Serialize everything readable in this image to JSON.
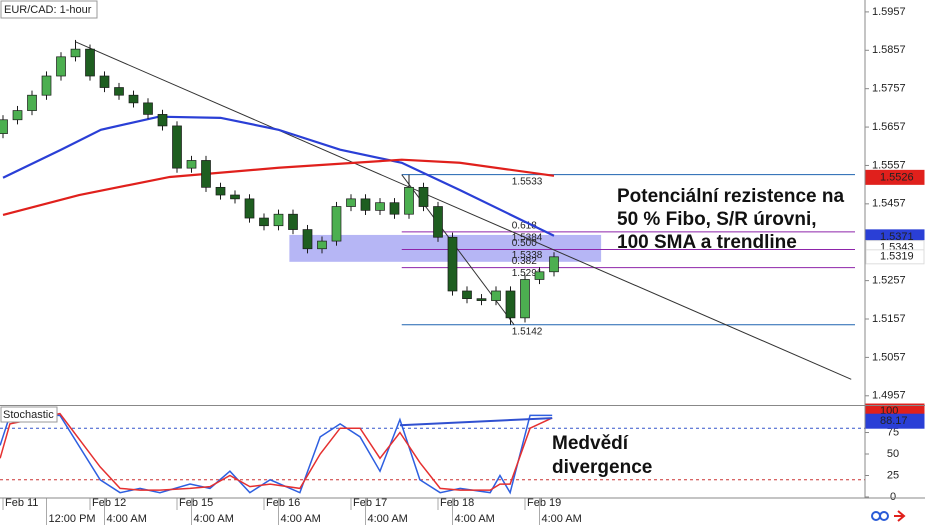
{
  "chart_data": [
    {
      "type": "candlestick",
      "title": "EUR/CAD: 1-hour",
      "xlim": [
        -0.83,
        237.8
      ],
      "ylim": [
        1.4933,
        1.5988
      ],
      "yticks": [
        1.5957,
        1.5857,
        1.5757,
        1.5657,
        1.5557,
        1.5457,
        1.5357,
        1.5257,
        1.5157,
        1.5057,
        1.4957
      ],
      "xticks": [
        {
          "value": 0,
          "label": "Feb 11"
        },
        {
          "value": 24,
          "label": "Feb 12"
        },
        {
          "value": 48,
          "label": "Feb 15"
        },
        {
          "value": 72,
          "label": "Feb 16"
        },
        {
          "value": 96,
          "label": "Feb 17"
        },
        {
          "value": 120,
          "label": "Feb 18"
        },
        {
          "value": 144,
          "label": "Feb 19"
        }
      ],
      "xticks_time": [
        {
          "value": 12,
          "label": "12:00 PM"
        },
        {
          "value": 28,
          "label": "4:00 AM"
        },
        {
          "value": 52,
          "label": "4:00 AM"
        },
        {
          "value": 76,
          "label": "4:00 AM"
        },
        {
          "value": 100,
          "label": "4:00 AM"
        },
        {
          "value": 124,
          "label": "4:00 AM"
        },
        {
          "value": 148,
          "label": "4:00 AM"
        }
      ],
      "up_color": "#4caf50",
      "down_color": "#1e5e20",
      "candles": {
        "x": [
          0,
          4,
          8,
          12,
          16,
          20,
          24,
          28,
          32,
          36,
          40,
          44,
          48,
          52,
          56,
          60,
          64,
          68,
          72,
          76,
          80,
          84,
          88,
          92,
          96,
          100,
          104,
          108,
          112,
          116,
          120,
          124,
          128,
          132,
          136,
          140,
          144,
          148,
          152
        ],
        "open": [
          1.564,
          1.5676,
          1.57,
          1.574,
          1.579,
          1.584,
          1.586,
          1.579,
          1.576,
          1.574,
          1.572,
          1.569,
          1.566,
          1.555,
          1.557,
          1.55,
          1.548,
          1.547,
          1.542,
          1.54,
          1.543,
          1.539,
          1.534,
          1.536,
          1.545,
          1.547,
          1.544,
          1.546,
          1.543,
          1.55,
          1.545,
          1.537,
          1.523,
          1.521,
          1.5205,
          1.523,
          1.516,
          1.526,
          1.528
        ],
        "high": [
          1.5688,
          1.5712,
          1.5752,
          1.5802,
          1.5852,
          1.5884,
          1.5872,
          1.5802,
          1.5772,
          1.5752,
          1.5732,
          1.5702,
          1.5672,
          1.5582,
          1.5582,
          1.5512,
          1.5492,
          1.5482,
          1.5432,
          1.5442,
          1.5442,
          1.5402,
          1.5372,
          1.5462,
          1.5482,
          1.5482,
          1.5472,
          1.5472,
          1.5533,
          1.5512,
          1.5462,
          1.5382,
          1.5242,
          1.5222,
          1.5242,
          1.5242,
          1.5272,
          1.5292,
          1.5331
        ],
        "low": [
          1.5628,
          1.5664,
          1.5688,
          1.5728,
          1.5778,
          1.5828,
          1.5778,
          1.5748,
          1.5728,
          1.5708,
          1.5678,
          1.5648,
          1.5538,
          1.5538,
          1.5488,
          1.5468,
          1.5458,
          1.5408,
          1.5388,
          1.5388,
          1.5378,
          1.5328,
          1.5328,
          1.5348,
          1.5438,
          1.5428,
          1.5428,
          1.5418,
          1.5418,
          1.5438,
          1.5358,
          1.5218,
          1.5198,
          1.5193,
          1.5193,
          1.5142,
          1.5148,
          1.5248,
          1.5268
        ],
        "close": [
          1.5676,
          1.57,
          1.574,
          1.579,
          1.584,
          1.586,
          1.579,
          1.576,
          1.574,
          1.572,
          1.569,
          1.566,
          1.555,
          1.557,
          1.55,
          1.548,
          1.547,
          1.542,
          1.54,
          1.543,
          1.539,
          1.534,
          1.536,
          1.545,
          1.547,
          1.544,
          1.546,
          1.543,
          1.55,
          1.545,
          1.537,
          1.523,
          1.521,
          1.5205,
          1.523,
          1.516,
          1.526,
          1.528,
          1.5319
        ]
      },
      "series": [
        {
          "color": "#2a3fd6",
          "x": [
            0,
            16,
            27,
            43,
            60,
            76,
            93,
            110,
            126,
            143,
            152
          ],
          "values": [
            1.5525,
            1.5598,
            1.565,
            1.5684,
            1.5681,
            1.565,
            1.5598,
            1.5564,
            1.5493,
            1.5415,
            1.5374
          ]
        },
        {
          "color": "#e0201c",
          "x": [
            0,
            21,
            46,
            76,
            110,
            126,
            152
          ],
          "values": [
            1.5428,
            1.548,
            1.5527,
            1.5551,
            1.5572,
            1.5564,
            1.553
          ]
        }
      ],
      "trendlines": [
        {
          "color": "#333333",
          "x": [
            20,
            234
          ],
          "values": [
            1.5879,
            1.5
          ]
        },
        {
          "color": "#333333",
          "x": [
            110,
            141
          ],
          "values": [
            1.5533,
            1.5142
          ]
        }
      ],
      "zone": {
        "color": "#a9a9f3",
        "x": [
          79,
          165
        ],
        "values": [
          1.5306,
          1.5376
        ]
      },
      "fib": {
        "x": 110,
        "swing_color": "#1e63b0",
        "level_color": "#8e24aa",
        "swing": [
          1.5533,
          1.5142
        ],
        "levels": [
          {
            "ratio": 0.618,
            "price": 1.5384
          },
          {
            "ratio": {
              "value": 0.5,
              "label": "0.500"
            },
            "price": 1.5338
          },
          {
            "ratio": 0.382,
            "price": 1.5291
          }
        ]
      },
      "price_tags": [
        {
          "value": 1.5526,
          "color": "#e0201c",
          "text_color": "#ffffff"
        },
        {
          "value": 1.5371,
          "color": "#2a3fd6",
          "text_color": "#ffffff"
        },
        {
          "value": 1.5343,
          "color": "#ffffff",
          "text_color": "#000000"
        },
        {
          "value": 1.5319,
          "color": "#ffffff",
          "text_color": "#000000"
        }
      ],
      "annotations": [
        {
          "lines": [
            "Potenciální rezistence na",
            "50 % Fibo, S/R úrovni,",
            "100 SMA a trendline"
          ]
        }
      ]
    },
    {
      "type": "line",
      "title": "Stochastic",
      "ylim": [
        -1.2,
        104.7
      ],
      "yticks": [
        0,
        25,
        50,
        75,
        100
      ],
      "levels": [
        {
          "value": 80,
          "color": "#3355cc"
        },
        {
          "value": 20,
          "color": "#cc3333"
        }
      ],
      "x": [
        -0.8,
        1.9,
        15.7,
        26.8,
        32.3,
        37.8,
        43.3,
        51.6,
        57.1,
        62.6,
        68.1,
        73.7,
        81.9,
        87.5,
        93,
        98.5,
        104,
        109.5,
        115,
        120.6,
        126.1,
        134.4,
        137.1,
        139.9,
        145.4,
        151.5
      ],
      "series": [
        {
          "color": "#2e5fe0",
          "values": [
            60,
            95,
            95,
            20,
            5,
            10,
            5,
            15,
            10,
            30,
            5,
            20,
            5,
            70,
            85,
            70,
            30,
            90,
            20,
            5,
            10,
            5,
            25,
            5,
            95,
            95
          ]
        },
        {
          "color": "#e53030",
          "values": [
            45,
            85,
            97,
            35,
            10,
            8,
            8,
            10,
            12,
            25,
            12,
            15,
            10,
            50,
            80,
            80,
            45,
            75,
            40,
            10,
            8,
            8,
            15,
            15,
            80,
            92
          ]
        }
      ],
      "divergence": {
        "color": "#3050d0",
        "x": [
          109.5,
          151.5
        ],
        "values": [
          83.5,
          91.8
        ]
      },
      "price_tags": [
        {
          "value": 100,
          "color": "#e0201c",
          "text_color": "#ffffff"
        },
        {
          "value": 88.17,
          "color": "#2a3fd6",
          "text_color": "#ffffff"
        }
      ],
      "annotations": [
        {
          "lines": [
            "Medvědí",
            "divergence"
          ]
        }
      ]
    }
  ]
}
